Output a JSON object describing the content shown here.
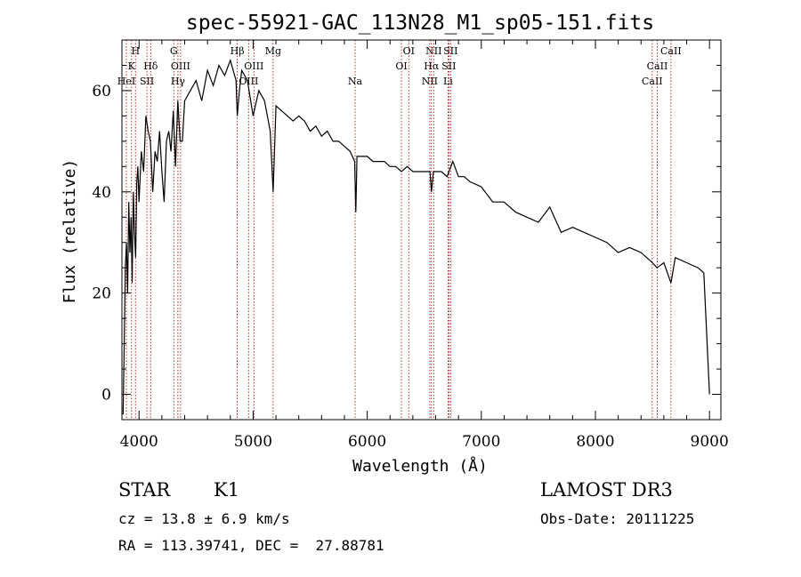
{
  "chart_data": {
    "type": "line",
    "title": "spec-55921-GAC_113N28_M1_sp05-151.fits",
    "xlabel": "Wavelength (Å)",
    "ylabel": "Flux (relative)",
    "xlim": [
      3850,
      9100
    ],
    "ylim": [
      -5,
      70
    ],
    "xticks": [
      4000,
      5000,
      6000,
      7000,
      8000,
      9000
    ],
    "yticks": [
      0,
      20,
      40,
      60
    ],
    "grid": false,
    "line_color": "#000000",
    "marker_color": "#aa0000",
    "series": [
      {
        "x": [
          3860,
          3870,
          3880,
          3890,
          3900,
          3910,
          3920,
          3930,
          3940,
          3950,
          3960,
          3970,
          3980,
          3990,
          4000,
          4020,
          4040,
          4060,
          4080,
          4100,
          4120,
          4140,
          4160,
          4180,
          4200,
          4220,
          4240,
          4260,
          4280,
          4300,
          4320,
          4340,
          4360,
          4380,
          4400,
          4450,
          4500,
          4550,
          4600,
          4650,
          4700,
          4750,
          4800,
          4850,
          4861,
          4880,
          4900,
          4950,
          5000,
          5050,
          5100,
          5150,
          5175,
          5200,
          5250,
          5300,
          5350,
          5400,
          5450,
          5500,
          5550,
          5600,
          5650,
          5700,
          5750,
          5800,
          5850,
          5890,
          5900,
          5910,
          5950,
          6000,
          6050,
          6100,
          6150,
          6200,
          6250,
          6300,
          6350,
          6400,
          6450,
          6500,
          6550,
          6563,
          6580,
          6600,
          6650,
          6700,
          6750,
          6800,
          6850,
          6900,
          7000,
          7100,
          7200,
          7300,
          7400,
          7500,
          7600,
          7700,
          7800,
          7900,
          8000,
          8100,
          8200,
          8300,
          8400,
          8500,
          8540,
          8600,
          8662,
          8700,
          8800,
          8900,
          8950,
          9000
        ],
        "values": [
          -4,
          10,
          25,
          30,
          20,
          38,
          28,
          35,
          22,
          40,
          32,
          27,
          42,
          45,
          38,
          48,
          44,
          55,
          52,
          50,
          40,
          48,
          46,
          52,
          44,
          38,
          50,
          52,
          48,
          56,
          45,
          58,
          50,
          50,
          58,
          60,
          62,
          58,
          64,
          61,
          65,
          63,
          66,
          62,
          55,
          60,
          64,
          62,
          55,
          60,
          58,
          52,
          40,
          57,
          56,
          55,
          54,
          55,
          54,
          52,
          53,
          51,
          52,
          50,
          50,
          49,
          48,
          46,
          36,
          47,
          47,
          47,
          46,
          46,
          46,
          45,
          45,
          44,
          45,
          44,
          44,
          44,
          44,
          40,
          44,
          44,
          44,
          43,
          46,
          43,
          43,
          42,
          41,
          38,
          38,
          36,
          35,
          34,
          37,
          32,
          33,
          32,
          31,
          30,
          28,
          29,
          28,
          26,
          25,
          26,
          22,
          27,
          26,
          25,
          24,
          0
        ]
      }
    ],
    "spectral_lines": [
      {
        "label": "CaII",
        "wl": 8498,
        "row": 3
      },
      {
        "label": "CaII",
        "wl": 8542,
        "row": 2
      },
      {
        "label": "CaII",
        "wl": 8662,
        "row": 1
      },
      {
        "label": "H",
        "wl": 3969,
        "row": 1
      },
      {
        "label": "K",
        "wl": 3934,
        "row": 2
      },
      {
        "label": "HeI",
        "wl": 3889,
        "row": 3
      },
      {
        "label": "Hδ",
        "wl": 4102,
        "row": 2
      },
      {
        "label": "SII",
        "wl": 4069,
        "row": 3
      },
      {
        "label": "G",
        "wl": 4305,
        "row": 1
      },
      {
        "label": "OIII",
        "wl": 4364,
        "row": 2
      },
      {
        "label": "Hγ",
        "wl": 4341,
        "row": 3
      },
      {
        "label": "Hβ",
        "wl": 4861,
        "row": 1
      },
      {
        "label": "OIII",
        "wl": 5007,
        "row": 2
      },
      {
        "label": "OIII",
        "wl": 4960,
        "row": 3
      },
      {
        "label": "Mg",
        "wl": 5175,
        "row": 1
      },
      {
        "label": "Na",
        "wl": 5894,
        "row": 3
      },
      {
        "label": "OI",
        "wl": 6364,
        "row": 1
      },
      {
        "label": "OI",
        "wl": 6300,
        "row": 2
      },
      {
        "label": "NII",
        "wl": 6583,
        "row": 1
      },
      {
        "label": "Hα",
        "wl": 6563,
        "row": 2
      },
      {
        "label": "NII",
        "wl": 6548,
        "row": 3
      },
      {
        "label": "SII",
        "wl": 6731,
        "row": 1
      },
      {
        "label": "SII",
        "wl": 6716,
        "row": 2
      },
      {
        "label": "Li",
        "wl": 6708,
        "row": 3
      }
    ]
  },
  "info": {
    "object_class": "STAR",
    "subclass": "K1",
    "survey": "LAMOST DR3",
    "redshift": "cz = 13.8 ± 6.9 km/s",
    "obs_date": "Obs-Date: 20111225",
    "coords": "RA = 113.39741, DEC =  27.88781"
  }
}
